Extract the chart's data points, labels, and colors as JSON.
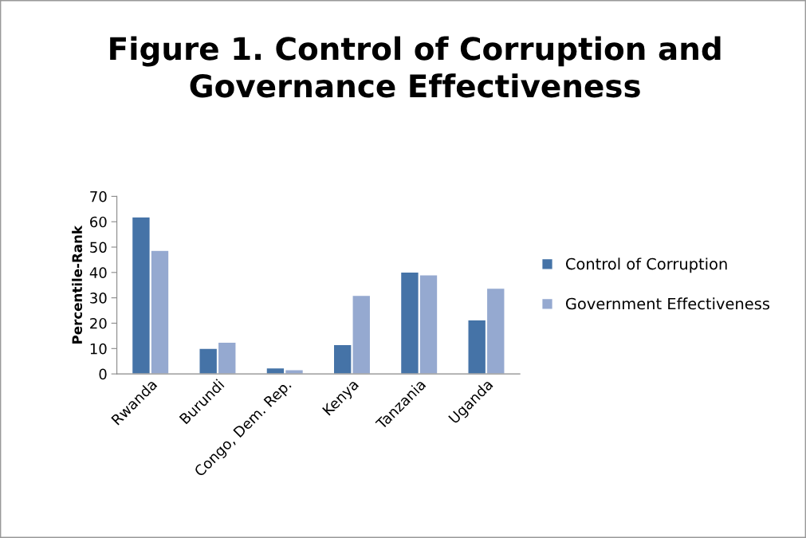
{
  "chart_data": {
    "type": "bar",
    "title": "Figure 1. Control of Corruption and\nGovernance Effectiveness",
    "ylabel": "Percentile-Rank",
    "categories": [
      "Rwanda",
      "Burundi",
      "Congo, Dem. Rep.",
      "Kenya",
      "Tanzania",
      "Uganda"
    ],
    "series": [
      {
        "name": "Control of Corruption",
        "color": "#4573a7",
        "values": [
          61.9,
          10.1,
          2.4,
          11.6,
          40.2,
          21.3
        ]
      },
      {
        "name": "Government Effectiveness",
        "color": "#95a9d0",
        "values": [
          48.7,
          12.5,
          1.7,
          31.0,
          39.1,
          33.8
        ]
      }
    ],
    "ylim": [
      0,
      70
    ],
    "yticks": [
      0,
      10,
      20,
      30,
      40,
      50,
      60,
      70
    ],
    "grid": false,
    "legend": "right"
  }
}
